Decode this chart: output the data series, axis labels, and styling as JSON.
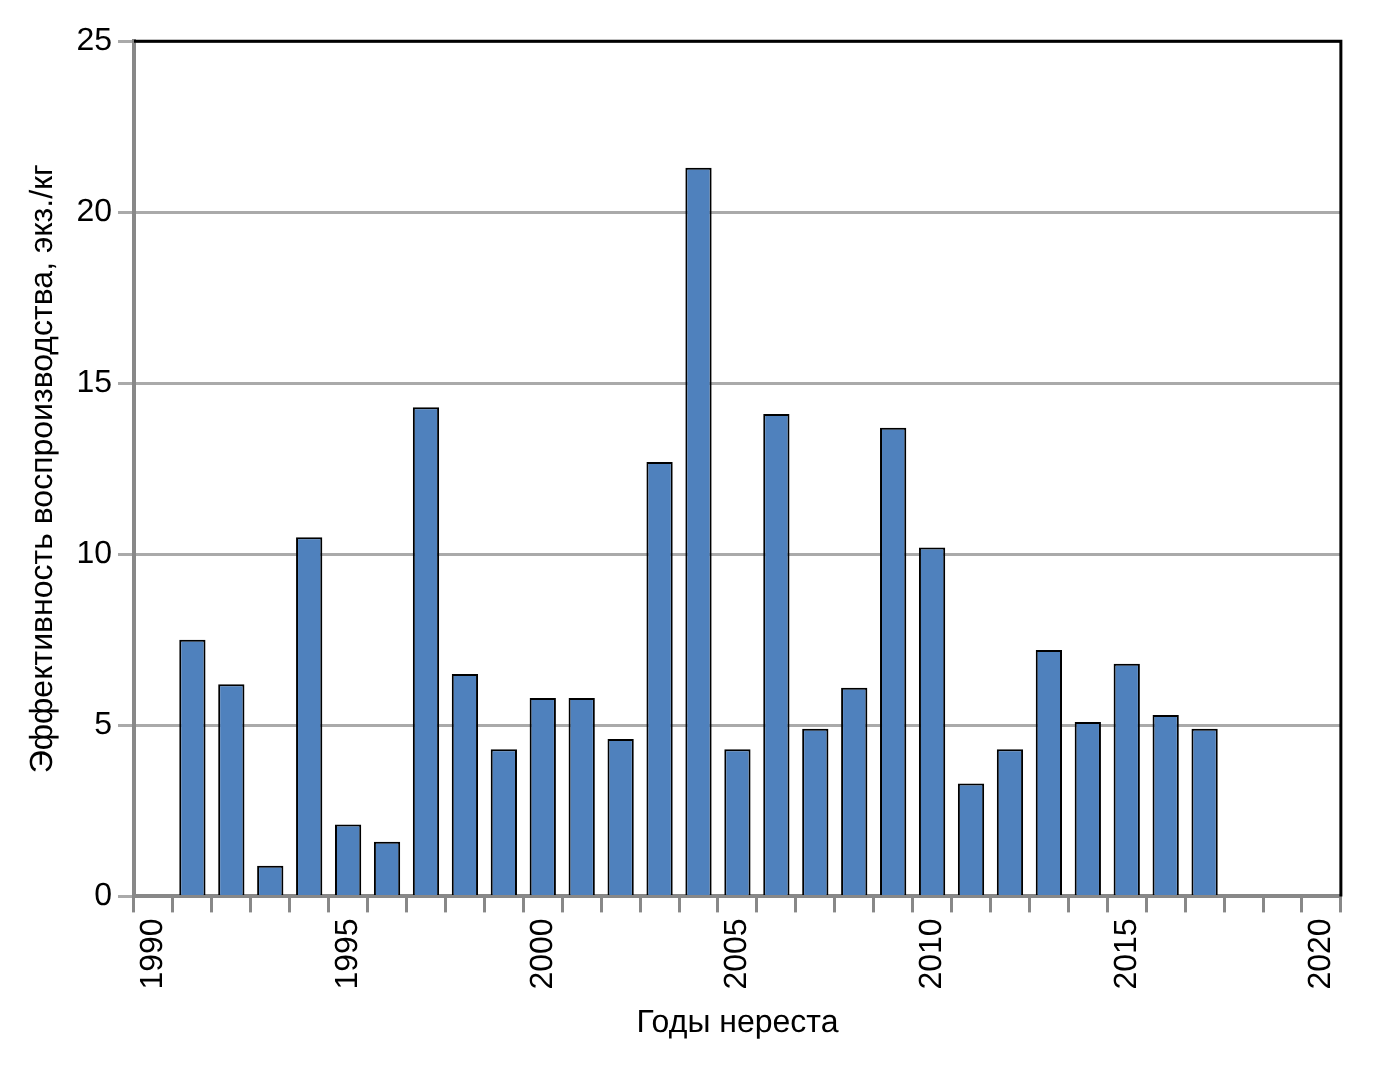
{
  "chart_data": {
    "type": "bar",
    "xlabel": "Годы нереста",
    "ylabel": "Эффективность воспроизводства, экз./кг",
    "categories": [
      "1990",
      null,
      null,
      null,
      null,
      "1995",
      null,
      null,
      null,
      null,
      "2000",
      null,
      null,
      null,
      null,
      "2005",
      null,
      null,
      null,
      null,
      "2010",
      null,
      null,
      null,
      null,
      "2015",
      null,
      null,
      null,
      null,
      "2020"
    ],
    "values": [
      null,
      7.5,
      6.2,
      0.9,
      10.5,
      2.1,
      1.6,
      14.3,
      6.5,
      4.3,
      5.8,
      5.8,
      4.6,
      12.7,
      21.3,
      4.3,
      14.1,
      4.9,
      6.1,
      13.7,
      10.2,
      3.3,
      4.3,
      7.2,
      5.1,
      6.8,
      5.3,
      4.9,
      null,
      null,
      null
    ],
    "color": "#4f81bd",
    "ylim": [
      0,
      25
    ],
    "yticks": [
      0,
      5,
      10,
      15,
      20,
      25
    ],
    "grid": "y"
  }
}
